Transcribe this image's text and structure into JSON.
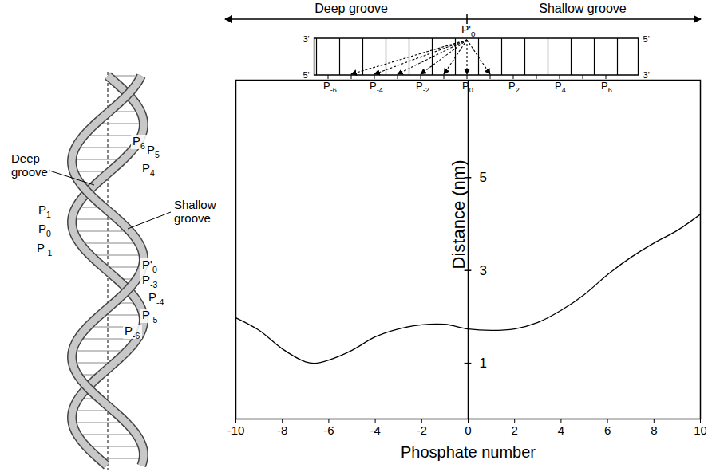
{
  "chart_data": {
    "type": "line",
    "x_label": "Phosphate number",
    "y_label": "Distance (nm)",
    "x": [
      -10,
      -9,
      -8,
      -7,
      -6.6,
      -6,
      -5,
      -4,
      -3,
      -2,
      -1,
      0,
      1,
      2,
      3,
      4,
      5,
      6,
      7,
      8,
      9,
      10
    ],
    "values": [
      1.98,
      1.71,
      1.31,
      1.03,
      1.0,
      1.07,
      1.28,
      1.57,
      1.74,
      1.83,
      1.84,
      1.74,
      1.71,
      1.74,
      1.88,
      2.14,
      2.48,
      2.91,
      3.28,
      3.59,
      3.86,
      4.21
    ],
    "color": "#000000",
    "xlim": [
      -10,
      10
    ],
    "xticks": [
      -10,
      -8,
      -6,
      -4,
      -2,
      0,
      2,
      4,
      6,
      8,
      10
    ],
    "ylim": [
      -0.2,
      7.1
    ],
    "yticks": [
      1,
      3,
      5
    ],
    "grid": false
  },
  "schematic": {
    "groove_arrow": {
      "left": "Deep groove",
      "right": "Shallow groove"
    },
    "top_label": {
      "main": "P'",
      "sub": "0"
    },
    "strand_ends": {
      "top_left": "3'",
      "top_right": "5'",
      "bottom_left": "5'",
      "bottom_right": "3'"
    },
    "phosphates": [
      {
        "main": "P",
        "sub": "-6"
      },
      {
        "main": "P",
        "sub": "-4"
      },
      {
        "main": "P",
        "sub": "-2"
      },
      {
        "main": "P",
        "sub": "0"
      },
      {
        "main": "P",
        "sub": "2"
      },
      {
        "main": "P",
        "sub": "4"
      },
      {
        "main": "P",
        "sub": "6"
      }
    ]
  },
  "helix": {
    "deep_groove": "Deep groove",
    "shallow_groove": "Shallow groove",
    "labels": [
      {
        "main": "P",
        "sub": "6"
      },
      {
        "main": "P",
        "sub": "5"
      },
      {
        "main": "P",
        "sub": "4"
      },
      {
        "main": "P",
        "sub": "1"
      },
      {
        "main": "P",
        "sub": "0"
      },
      {
        "main": "P",
        "sub": "-1"
      },
      {
        "main": "P'",
        "sub": "0"
      },
      {
        "main": "P",
        "sub": "-3"
      },
      {
        "main": "P",
        "sub": "-4"
      },
      {
        "main": "P",
        "sub": "-5"
      },
      {
        "main": "P",
        "sub": "-6"
      }
    ]
  }
}
